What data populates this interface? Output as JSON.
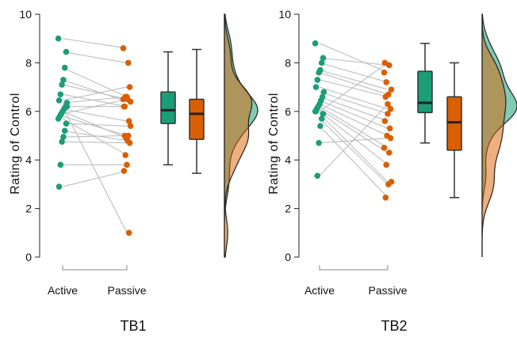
{
  "chart_data": [
    {
      "type": "raincloud",
      "title": "TB1",
      "ylabel": "Rating of Control",
      "xlabel": "",
      "ylim": [
        0,
        10
      ],
      "yticks": [
        0,
        2,
        4,
        6,
        8,
        10
      ],
      "categories": [
        "Active",
        "Passive"
      ],
      "colors": {
        "Active": "#1b9e77",
        "Passive": "#d95f02"
      },
      "pairs": [
        [
          9.0,
          8.6
        ],
        [
          8.45,
          8.0
        ],
        [
          7.8,
          6.6
        ],
        [
          7.3,
          6.4
        ],
        [
          7.1,
          6.5
        ],
        [
          6.7,
          6.2
        ],
        [
          6.45,
          7.0
        ],
        [
          6.35,
          6.6
        ],
        [
          6.2,
          6.2
        ],
        [
          6.1,
          5.6
        ],
        [
          6.0,
          4.9
        ],
        [
          5.9,
          6.5
        ],
        [
          5.8,
          5.0
        ],
        [
          5.7,
          4.2
        ],
        [
          5.5,
          5.4
        ],
        [
          5.2,
          4.8
        ],
        [
          4.95,
          5.0
        ],
        [
          4.75,
          4.7
        ],
        [
          3.8,
          3.8
        ],
        [
          2.9,
          3.55
        ],
        [
          6.2,
          1.0
        ]
      ],
      "boxplots": [
        {
          "name": "Active",
          "whisker_low": 3.8,
          "q1": 5.5,
          "median": 6.05,
          "q3": 6.8,
          "whisker_high": 8.45
        },
        {
          "name": "Passive",
          "whisker_low": 3.45,
          "q1": 4.85,
          "median": 5.9,
          "q3": 6.5,
          "whisker_high": 8.55
        }
      ],
      "x_axis_labels": [
        "Active",
        "Passive"
      ]
    },
    {
      "type": "raincloud",
      "title": "TB2",
      "ylabel": "Rating of Control",
      "xlabel": "",
      "ylim": [
        0,
        10
      ],
      "yticks": [
        0,
        2,
        4,
        6,
        8,
        10
      ],
      "categories": [
        "Active",
        "Passive"
      ],
      "colors": {
        "Active": "#1b9e77",
        "Passive": "#d95f02"
      },
      "pairs": [
        [
          8.8,
          7.6
        ],
        [
          8.2,
          7.9
        ],
        [
          8.0,
          7.2
        ],
        [
          7.7,
          6.9
        ],
        [
          7.6,
          6.7
        ],
        [
          7.3,
          6.6
        ],
        [
          7.0,
          6.1
        ],
        [
          6.8,
          5.9
        ],
        [
          6.6,
          5.6
        ],
        [
          6.45,
          5.3
        ],
        [
          6.3,
          5.0
        ],
        [
          6.2,
          4.5
        ],
        [
          6.1,
          4.3
        ],
        [
          6.0,
          3.8
        ],
        [
          5.9,
          3.1
        ],
        [
          5.7,
          3.0
        ],
        [
          5.4,
          2.45
        ],
        [
          4.7,
          4.9
        ],
        [
          3.35,
          6.3
        ],
        [
          6.0,
          8.0
        ]
      ],
      "boxplots": [
        {
          "name": "Active",
          "whisker_low": 4.7,
          "q1": 5.95,
          "median": 6.35,
          "q3": 7.65,
          "whisker_high": 8.8
        },
        {
          "name": "Passive",
          "whisker_low": 2.45,
          "q1": 4.4,
          "median": 5.55,
          "q3": 6.6,
          "whisker_high": 8.0
        }
      ],
      "x_axis_labels": [
        "Active",
        "Passive"
      ]
    }
  ]
}
